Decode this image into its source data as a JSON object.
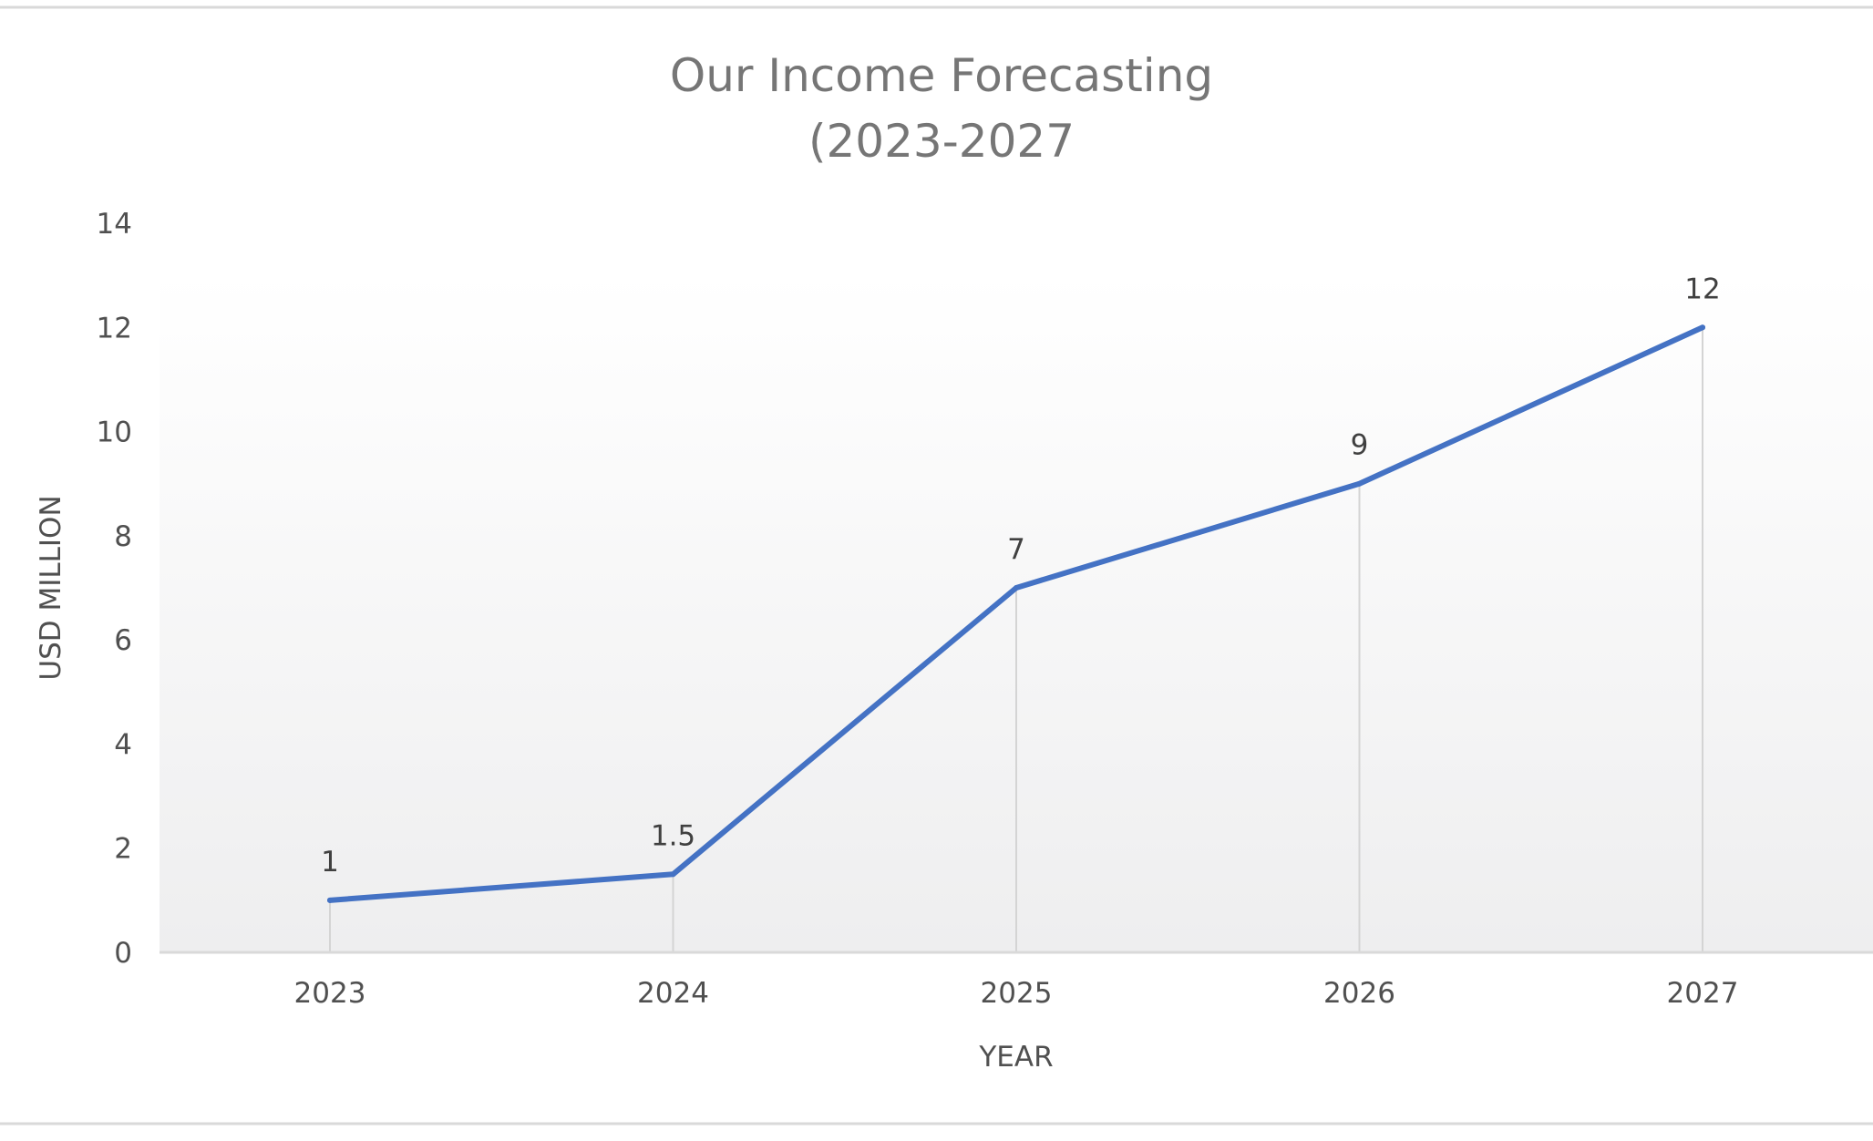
{
  "chart_data": {
    "type": "line",
    "title": "Our Income Forecasting",
    "subtitle": "(2023-2027",
    "xlabel": "YEAR",
    "ylabel": "USD MILLION",
    "categories": [
      "2023",
      "2024",
      "2025",
      "2026",
      "2027"
    ],
    "series": [
      {
        "values": [
          1,
          1.5,
          7,
          9,
          12
        ],
        "color": "#4472c4"
      }
    ],
    "data_labels": [
      "1",
      "1.5",
      "7",
      "9",
      "12"
    ],
    "ylim": [
      0,
      14
    ],
    "yticks": [
      0,
      2,
      4,
      6,
      8,
      10,
      12,
      14
    ],
    "grid": "vertical drop lines at each category",
    "legend": "none",
    "colors": {
      "line": "#4472c4",
      "axis": "#d9d9d9",
      "text": "#595959",
      "title": "#767676"
    }
  }
}
